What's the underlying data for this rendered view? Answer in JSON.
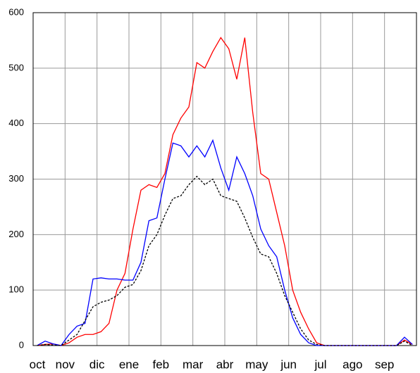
{
  "chart_data": {
    "type": "line",
    "categories": [
      "oct",
      null,
      null,
      null,
      "nov",
      null,
      null,
      null,
      "dic",
      null,
      null,
      null,
      "ene",
      null,
      null,
      null,
      "feb",
      null,
      null,
      null,
      "mar",
      null,
      null,
      null,
      "abr",
      null,
      null,
      null,
      "may",
      null,
      null,
      null,
      "jun",
      null,
      null,
      null,
      "jul",
      null,
      null,
      null,
      "ago",
      null,
      null,
      null,
      "sep",
      null,
      null,
      null
    ],
    "series": [
      {
        "color": "#ff0000",
        "dashed": false,
        "values": [
          0,
          2,
          3,
          0,
          5,
          15,
          20,
          20,
          25,
          40,
          100,
          130,
          210,
          280,
          290,
          285,
          310,
          380,
          410,
          430,
          510,
          500,
          530,
          555,
          535,
          480,
          555,
          420,
          310,
          300,
          240,
          180,
          100,
          60,
          30,
          5,
          0,
          0,
          0,
          0,
          0,
          0,
          0,
          0,
          0,
          0,
          10,
          2
        ]
      },
      {
        "color": "#0000ff",
        "dashed": false,
        "values": [
          0,
          8,
          3,
          0,
          20,
          35,
          40,
          120,
          122,
          120,
          120,
          118,
          118,
          150,
          225,
          230,
          300,
          365,
          360,
          340,
          360,
          340,
          370,
          320,
          280,
          340,
          310,
          270,
          210,
          180,
          160,
          100,
          50,
          20,
          5,
          0,
          0,
          0,
          0,
          0,
          0,
          0,
          0,
          0,
          0,
          0,
          15,
          2
        ]
      },
      {
        "color": "#000000",
        "dashed": true,
        "values": [
          0,
          2,
          1,
          0,
          10,
          20,
          45,
          70,
          78,
          82,
          90,
          105,
          110,
          135,
          180,
          200,
          235,
          265,
          270,
          290,
          305,
          290,
          300,
          270,
          265,
          260,
          230,
          195,
          165,
          160,
          130,
          90,
          60,
          30,
          10,
          2,
          0,
          0,
          0,
          0,
          0,
          0,
          0,
          0,
          0,
          0,
          8,
          0
        ]
      }
    ],
    "ylim": [
      0,
      600
    ],
    "yticks": [
      0,
      100,
      200,
      300,
      400,
      500,
      600
    ],
    "grid": true
  }
}
